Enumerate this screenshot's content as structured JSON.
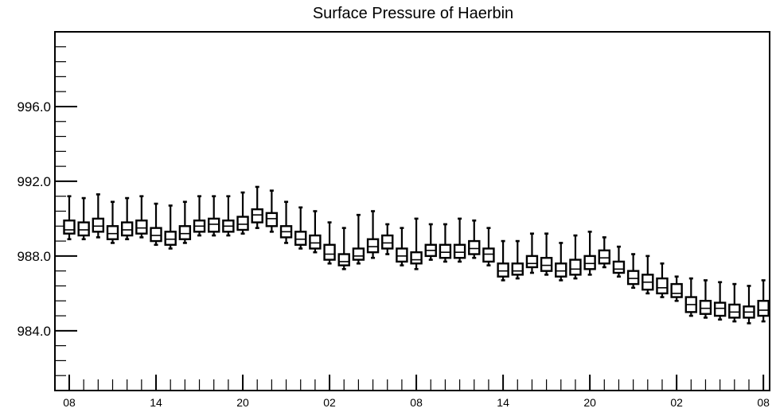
{
  "chart_data": {
    "type": "box",
    "title": "Surface Pressure of Haerbin",
    "xlabel": "",
    "ylabel": "",
    "ylim": [
      980.8,
      1000.0
    ],
    "y_ticks": [
      984.0,
      988.0,
      992.0,
      996.0
    ],
    "y_tick_labels": [
      "984.0",
      "988.0",
      "992.0",
      "996.0"
    ],
    "x_tick_labels": [
      "08",
      "14",
      "20",
      "02",
      "08",
      "14",
      "20",
      "02",
      "08"
    ],
    "x_tick_positions": [
      0,
      6,
      12,
      18,
      24,
      30,
      36,
      42,
      48
    ],
    "grid": false,
    "series": [
      {
        "x": [
          0,
          1,
          2,
          3,
          4,
          5,
          6,
          7,
          8,
          9,
          10,
          11,
          12,
          13,
          14,
          15,
          16,
          17,
          18,
          19,
          20,
          21,
          22,
          23,
          24,
          25,
          26,
          27,
          28,
          29,
          30,
          31,
          32,
          33,
          34,
          35,
          36,
          37,
          38,
          39,
          40,
          41,
          42,
          43,
          44,
          45,
          46,
          47,
          48
        ],
        "whisker_high": [
          991.2,
          991.1,
          991.3,
          990.9,
          991.1,
          991.2,
          990.8,
          990.7,
          990.9,
          991.2,
          991.2,
          991.2,
          991.4,
          991.7,
          991.5,
          990.9,
          990.6,
          990.4,
          989.8,
          989.5,
          990.2,
          990.4,
          989.7,
          989.5,
          990.0,
          989.7,
          989.7,
          990.0,
          989.9,
          989.5,
          988.8,
          988.8,
          989.2,
          989.2,
          988.7,
          989.1,
          989.3,
          989.0,
          988.5,
          988.1,
          988.0,
          987.6,
          986.9,
          986.8,
          986.7,
          986.6,
          986.5,
          986.4,
          986.7
        ],
        "q3": [
          989.9,
          989.8,
          990.0,
          989.6,
          989.8,
          989.9,
          989.5,
          989.3,
          989.6,
          989.9,
          990.0,
          989.9,
          990.1,
          990.5,
          990.3,
          989.6,
          989.3,
          989.1,
          988.6,
          988.1,
          988.4,
          988.9,
          989.1,
          988.4,
          988.2,
          988.6,
          988.6,
          988.6,
          988.8,
          988.4,
          987.6,
          987.6,
          988.0,
          987.9,
          987.6,
          987.8,
          988.0,
          988.3,
          987.7,
          987.2,
          987.0,
          986.8,
          986.5,
          985.8,
          985.6,
          985.5,
          985.4,
          985.3,
          985.6
        ],
        "median": [
          989.4,
          989.4,
          989.6,
          989.2,
          989.4,
          989.5,
          989.1,
          988.9,
          989.2,
          989.6,
          989.7,
          989.6,
          989.7,
          990.2,
          990.0,
          989.3,
          988.9,
          988.7,
          988.1,
          987.7,
          988.0,
          988.5,
          988.7,
          988.0,
          987.8,
          988.3,
          988.2,
          988.2,
          988.4,
          988.1,
          987.2,
          987.2,
          987.6,
          987.5,
          987.2,
          987.3,
          987.6,
          987.9,
          987.3,
          986.8,
          986.6,
          986.3,
          986.0,
          985.4,
          985.2,
          985.2,
          985.0,
          985.0,
          985.1
        ],
        "q1": [
          989.2,
          989.1,
          989.3,
          988.9,
          989.1,
          989.2,
          988.8,
          988.6,
          988.9,
          989.3,
          989.3,
          989.3,
          989.4,
          989.8,
          989.6,
          989.0,
          988.6,
          988.4,
          987.8,
          987.5,
          987.8,
          988.2,
          988.4,
          987.7,
          987.6,
          988.0,
          987.9,
          987.9,
          988.1,
          987.7,
          986.9,
          987.0,
          987.4,
          987.2,
          986.9,
          987.0,
          987.3,
          987.6,
          987.1,
          986.5,
          986.2,
          986.0,
          985.8,
          985.0,
          984.9,
          984.8,
          984.7,
          984.7,
          984.8
        ],
        "whisker_low": [
          988.9,
          988.9,
          989.0,
          988.7,
          988.9,
          989.0,
          988.6,
          988.4,
          988.7,
          989.1,
          989.1,
          989.1,
          989.2,
          989.5,
          989.3,
          988.7,
          988.4,
          988.2,
          987.6,
          987.3,
          987.6,
          987.9,
          988.1,
          987.5,
          987.3,
          987.8,
          987.7,
          987.7,
          987.9,
          987.5,
          986.7,
          986.8,
          987.1,
          987.0,
          986.7,
          986.8,
          987.0,
          987.4,
          986.9,
          986.3,
          986.0,
          985.8,
          985.6,
          984.8,
          984.7,
          984.6,
          984.5,
          984.4,
          984.5
        ]
      }
    ]
  }
}
